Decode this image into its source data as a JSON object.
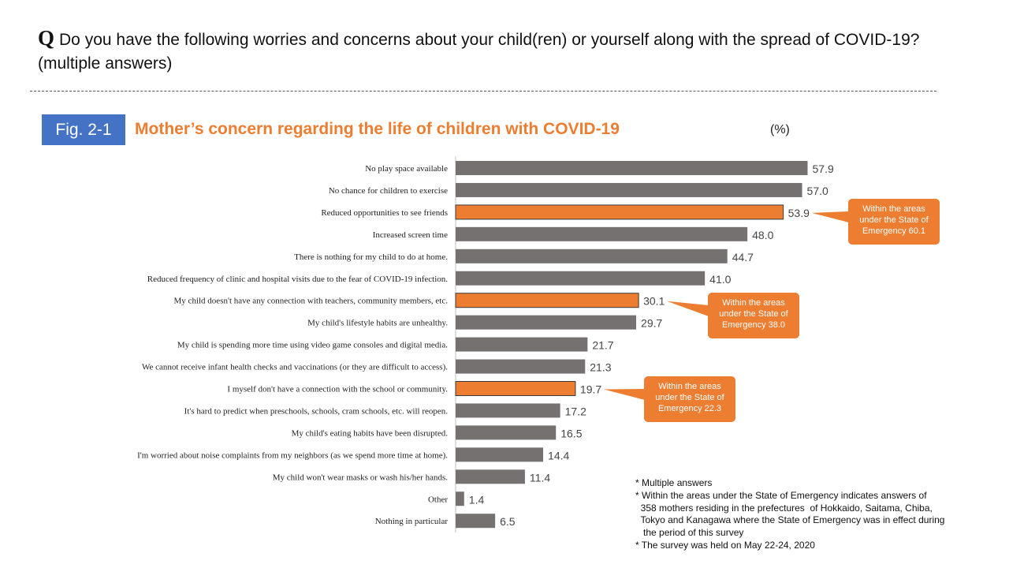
{
  "question": {
    "mark": "Q",
    "text": "Do you have the following worries and concerns about your child(ren) or yourself along with the spread of COVID-19?  (multiple answers)"
  },
  "figure": {
    "badge": "Fig. 2-1",
    "title": "Mother’s concern regarding the life of children with COVID-19",
    "unit": "(%)"
  },
  "colors": {
    "bar": "#767171",
    "highlight": "#ed7d31",
    "badge": "#4472c4"
  },
  "chart_data": {
    "type": "bar",
    "orientation": "horizontal",
    "categories": [
      "No play space available",
      "No chance for children to exercise",
      "Reduced opportunities to see friends",
      "Increased screen time",
      "There is nothing for my child to do at home.",
      "Reduced frequency of clinic and hospital visits due to the fear of COVID-19 infection.",
      "My child doesn't have any connection with teachers, community members, etc.",
      "My child's lifestyle habits are unhealthy.",
      "My child is spending more time using video game consoles and digital media.",
      "We cannot receive infant health checks and vaccinations (or they are difficult to access).",
      "I myself don't have a connection with the school or community.",
      "It's hard to predict when preschools, schools, cram schools, etc. will reopen.",
      "My child's eating habits have been disrupted.",
      "I'm worried about noise complaints from my neighbors (as we spend more time at home).",
      "My child won't wear masks or wash his/her hands.",
      "Other",
      "Nothing in particular"
    ],
    "values": [
      57.9,
      57.0,
      53.9,
      48.0,
      44.7,
      41.0,
      30.1,
      29.7,
      21.7,
      21.3,
      19.7,
      17.2,
      16.5,
      14.4,
      11.4,
      1.4,
      6.5
    ],
    "value_labels": [
      "57.9",
      "57.0",
      "53.9",
      "48.0",
      "44.7",
      "41.0",
      "30.1",
      "29.7",
      "21.7",
      "21.3",
      "19.7",
      "17.2",
      "16.5",
      "14.4",
      "11.4",
      "1.4",
      "6.5"
    ],
    "highlighted": [
      2,
      6,
      10
    ],
    "xlim": [
      0,
      60
    ],
    "grid": false,
    "callouts": [
      {
        "index": 2,
        "text": [
          "Within the areas",
          "under the State of",
          "Emergency 60.1"
        ]
      },
      {
        "index": 6,
        "text": [
          "Within the areas",
          "under the State of",
          "Emergency 38.0"
        ]
      },
      {
        "index": 10,
        "text": [
          "Within the areas",
          "under the State of",
          "Emergency 22.3"
        ]
      }
    ]
  },
  "notes": [
    "* Multiple answers",
    "* Within the areas under the State of Emergency indicates answers of",
    "  358 mothers residing in the prefectures  of Hokkaido, Saitama, Chiba,",
    "  Tokyo and Kanagawa where the State of Emergency was in effect during",
    "   the period of this survey",
    "* The survey was held on May 22-24, 2020"
  ]
}
